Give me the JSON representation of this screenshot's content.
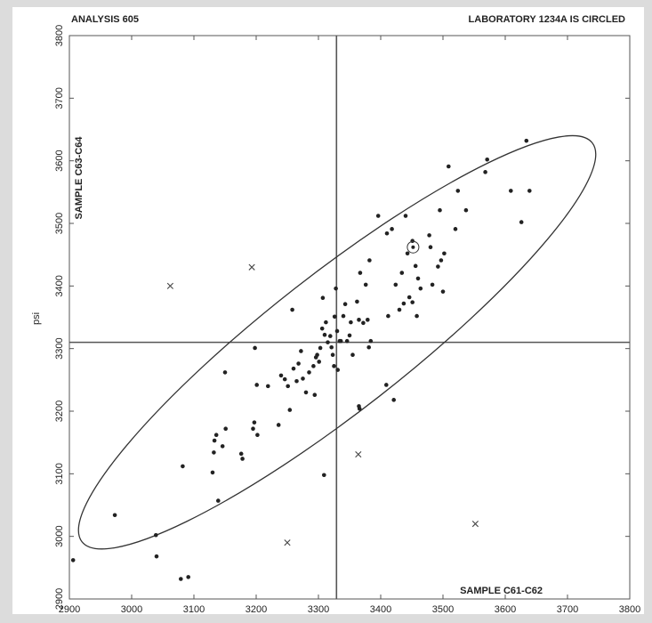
{
  "chart_data": {
    "type": "scatter",
    "title_left": "ANALYSIS 605",
    "title_right": "LABORATORY 1234A IS CIRCLED",
    "x_sample_label": "SAMPLE C61-C62",
    "y_sample_label": "SAMPLE C63-C64",
    "ylabel": "psi",
    "xlim": [
      2900,
      3800
    ],
    "ylim": [
      2900,
      3800
    ],
    "x_ticks": [
      2900,
      3000,
      3100,
      3200,
      3300,
      3400,
      3500,
      3600,
      3700,
      3800
    ],
    "y_ticks": [
      2900,
      3000,
      3100,
      3200,
      3300,
      3400,
      3500,
      3600,
      3700,
      3800
    ],
    "x_tick_labels": [
      "2900",
      "3000",
      "3100",
      "3200",
      "3300",
      "3400",
      "3500",
      "3600",
      "3700",
      "3800"
    ],
    "y_tick_labels": [
      "2900",
      "3000",
      "3100",
      "3200",
      "3300",
      "3400",
      "3500",
      "3600",
      "3700",
      "3800"
    ],
    "median_x": 3329,
    "median_y": 3310,
    "ellipse": {
      "center": [
        3330,
        3310
      ],
      "semi_major": 520,
      "semi_minor": 110,
      "angle_deg": 38
    },
    "circled_lab": [
      3452,
      3462
    ],
    "points": [
      [
        2906,
        2962
      ],
      [
        2973,
        3034
      ],
      [
        3039,
        3002
      ],
      [
        3040,
        2968
      ],
      [
        3079,
        2932
      ],
      [
        3091,
        2935
      ],
      [
        3082,
        3112
      ],
      [
        3130,
        3102
      ],
      [
        3132,
        3134
      ],
      [
        3133,
        3153
      ],
      [
        3136,
        3162
      ],
      [
        3139,
        3057
      ],
      [
        3146,
        3144
      ],
      [
        3151,
        3172
      ],
      [
        3150,
        3262
      ],
      [
        3176,
        3132
      ],
      [
        3178,
        3124
      ],
      [
        3195,
        3172
      ],
      [
        3197,
        3182
      ],
      [
        3202,
        3162
      ],
      [
        3198,
        3301
      ],
      [
        3201,
        3242
      ],
      [
        3219,
        3240
      ],
      [
        3236,
        3178
      ],
      [
        3240,
        3257
      ],
      [
        3246,
        3251
      ],
      [
        3251,
        3240
      ],
      [
        3254,
        3202
      ],
      [
        3258,
        3362
      ],
      [
        3260,
        3268
      ],
      [
        3265,
        3248
      ],
      [
        3268,
        3276
      ],
      [
        3272,
        3296
      ],
      [
        3275,
        3252
      ],
      [
        3280,
        3230
      ],
      [
        3285,
        3262
      ],
      [
        3292,
        3272
      ],
      [
        3294,
        3226
      ],
      [
        3296,
        3286
      ],
      [
        3298,
        3290
      ],
      [
        3301,
        3279
      ],
      [
        3303,
        3301
      ],
      [
        3306,
        3332
      ],
      [
        3307,
        3381
      ],
      [
        3309,
        3098
      ],
      [
        3310,
        3322
      ],
      [
        3312,
        3342
      ],
      [
        3315,
        3310
      ],
      [
        3319,
        3320
      ],
      [
        3321,
        3302
      ],
      [
        3323,
        3290
      ],
      [
        3325,
        3272
      ],
      [
        3326,
        3351
      ],
      [
        3328,
        3396
      ],
      [
        3330,
        3328
      ],
      [
        3331,
        3266
      ],
      [
        3334,
        3312
      ],
      [
        3336,
        3312
      ],
      [
        3340,
        3352
      ],
      [
        3343,
        3371
      ],
      [
        3346,
        3312
      ],
      [
        3350,
        3321
      ],
      [
        3352,
        3342
      ],
      [
        3355,
        3290
      ],
      [
        3362,
        3375
      ],
      [
        3365,
        3346
      ],
      [
        3365,
        3208
      ],
      [
        3366,
        3204
      ],
      [
        3367,
        3421
      ],
      [
        3372,
        3341
      ],
      [
        3376,
        3402
      ],
      [
        3379,
        3346
      ],
      [
        3381,
        3302
      ],
      [
        3382,
        3441
      ],
      [
        3384,
        3312
      ],
      [
        3396,
        3512
      ],
      [
        3409,
        3242
      ],
      [
        3410,
        3484
      ],
      [
        3412,
        3352
      ],
      [
        3418,
        3491
      ],
      [
        3421,
        3218
      ],
      [
        3424,
        3402
      ],
      [
        3430,
        3362
      ],
      [
        3434,
        3421
      ],
      [
        3437,
        3372
      ],
      [
        3440,
        3512
      ],
      [
        3443,
        3452
      ],
      [
        3446,
        3382
      ],
      [
        3451,
        3472
      ],
      [
        3451,
        3374
      ],
      [
        3456,
        3432
      ],
      [
        3458,
        3352
      ],
      [
        3460,
        3412
      ],
      [
        3464,
        3396
      ],
      [
        3478,
        3481
      ],
      [
        3480,
        3462
      ],
      [
        3483,
        3402
      ],
      [
        3492,
        3431
      ],
      [
        3495,
        3521
      ],
      [
        3497,
        3441
      ],
      [
        3500,
        3391
      ],
      [
        3502,
        3452
      ],
      [
        3509,
        3591
      ],
      [
        3520,
        3491
      ],
      [
        3524,
        3552
      ],
      [
        3537,
        3521
      ],
      [
        3568,
        3582
      ],
      [
        3571,
        3602
      ],
      [
        3609,
        3552
      ],
      [
        3626,
        3502
      ],
      [
        3634,
        3632
      ],
      [
        3639,
        3552
      ]
    ],
    "outliers": [
      [
        3062,
        3400
      ],
      [
        3193,
        3430
      ],
      [
        3250,
        2990
      ],
      [
        3364,
        3131
      ],
      [
        3552,
        3020
      ]
    ]
  }
}
